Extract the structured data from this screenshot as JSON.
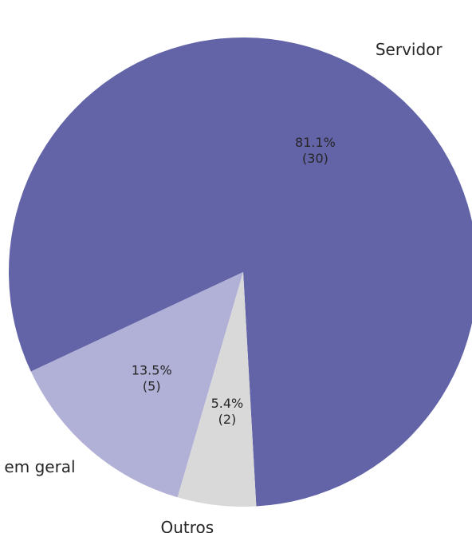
{
  "chart_data": {
    "type": "pie",
    "slices": [
      {
        "label": "Servidor",
        "percent_label": "81.1%",
        "count_label": "(30)",
        "value": 30,
        "color": "#6363a8"
      },
      {
        "label": "Sociedade em geral",
        "percent_label": "13.5%",
        "count_label": "(5)",
        "value": 5,
        "color": "#b1b0d6"
      },
      {
        "label": "Outros",
        "percent_label": "5.4%",
        "count_label": "(2)",
        "value": 2,
        "color": "#d9d9d9"
      }
    ],
    "title": "",
    "legend": "none"
  }
}
